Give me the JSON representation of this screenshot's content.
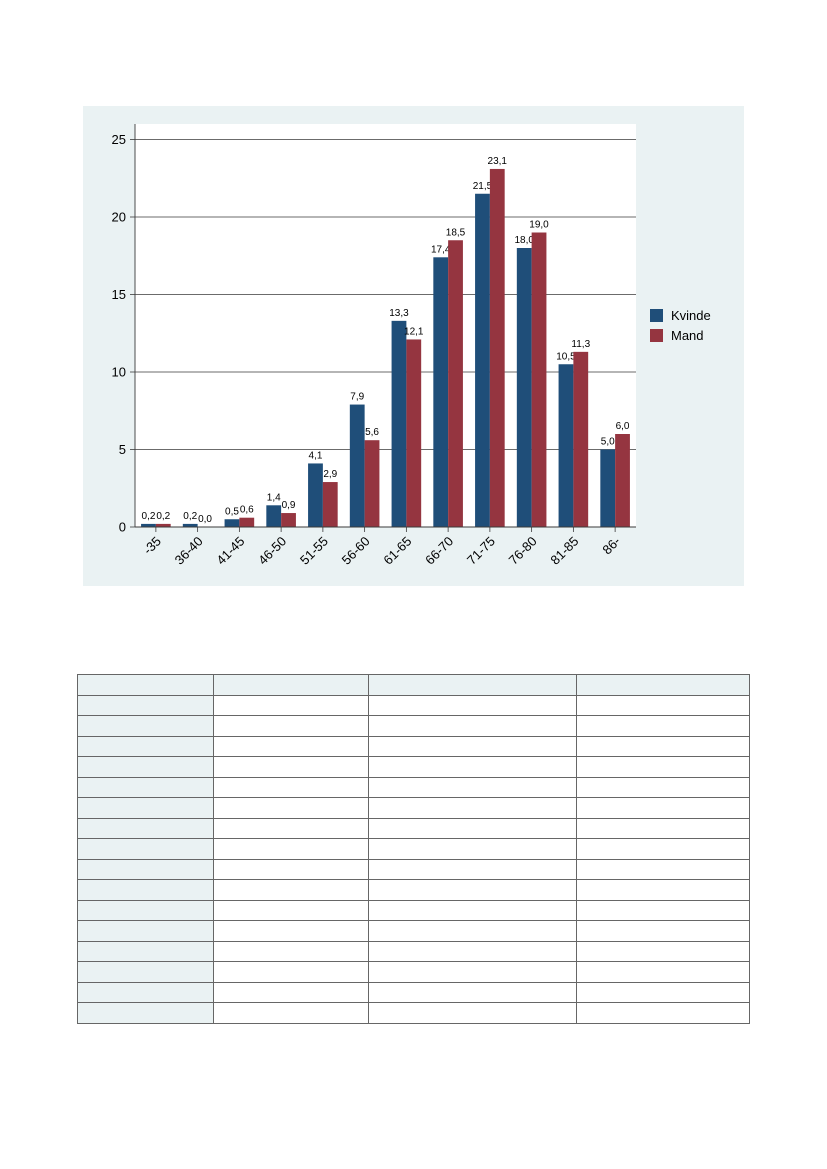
{
  "chart_data": {
    "type": "bar",
    "categories": [
      "-35",
      "36-40",
      "41-45",
      "46-50",
      "51-55",
      "56-60",
      "61-65",
      "66-70",
      "71-75",
      "76-80",
      "81-85",
      "86-"
    ],
    "series": [
      {
        "name": "Kvinde",
        "color": "#1f4e79",
        "values": [
          0.2,
          0.2,
          0.5,
          1.4,
          4.1,
          7.9,
          13.3,
          17.4,
          21.5,
          18.0,
          10.5,
          5.0
        ],
        "labels": [
          "0,2",
          "0,2",
          "0,5",
          "1,4",
          "4,1",
          "7,9",
          "13,3",
          "17,4",
          "21,5",
          "18,0",
          "10,5",
          "5,0"
        ]
      },
      {
        "name": "Mand",
        "color": "#953540",
        "values": [
          0.2,
          0.0,
          0.6,
          0.9,
          2.9,
          5.6,
          12.1,
          18.5,
          23.1,
          19.0,
          11.3,
          6.0
        ],
        "labels": [
          "0,2",
          "0,0",
          "0,6",
          "0,9",
          "2,9",
          "5,6",
          "12,1",
          "18,5",
          "23,1",
          "19,0",
          "11,3",
          "6,0"
        ]
      }
    ],
    "yticks": [
      "0",
      "5",
      "10",
      "15",
      "20",
      "25"
    ],
    "ylim": [
      0,
      26
    ],
    "grid": true,
    "legend": "right"
  },
  "table": {
    "rows": 17,
    "cols": 4
  }
}
